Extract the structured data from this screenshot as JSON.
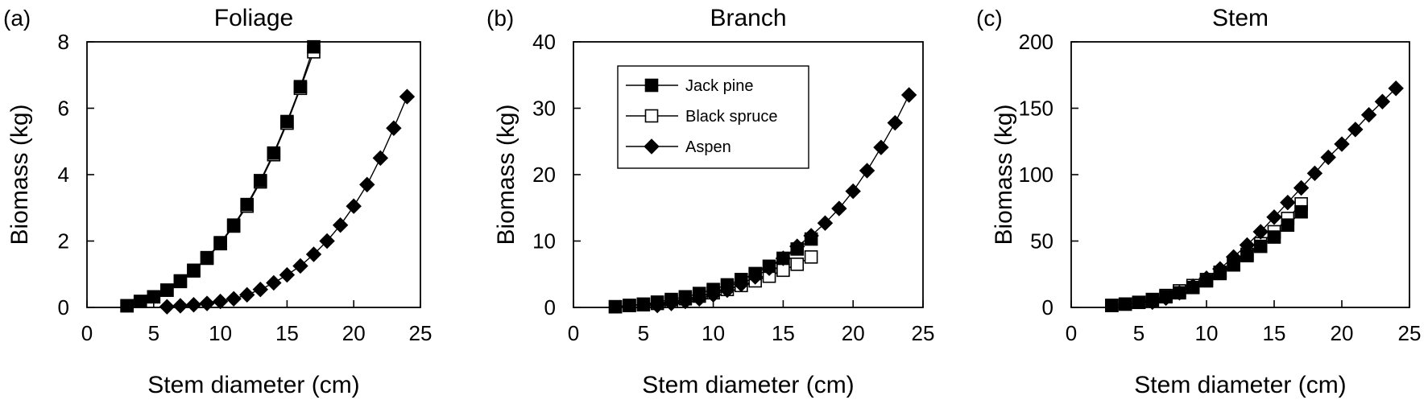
{
  "chart_data": [
    {
      "type": "line",
      "panel_label": "(a)",
      "title": "Foliage",
      "xlabel": "Stem diameter (cm)",
      "ylabel": "Biomass (kg)",
      "xlim": [
        0,
        25
      ],
      "ylim": [
        0,
        8
      ],
      "xticks": [
        0,
        5,
        10,
        15,
        20,
        25
      ],
      "yticks": [
        0,
        2,
        4,
        6,
        8
      ],
      "grid": false,
      "series": [
        {
          "name": "Jack pine",
          "marker": "filled-square",
          "x": [
            3,
            4,
            5,
            6,
            7,
            8,
            9,
            10,
            11,
            12,
            13,
            14,
            15,
            16,
            17
          ],
          "y": [
            0.05,
            0.18,
            0.32,
            0.52,
            0.8,
            1.12,
            1.5,
            1.95,
            2.48,
            3.1,
            3.82,
            4.65,
            5.6,
            6.65,
            7.85
          ]
        },
        {
          "name": "Black spruce",
          "marker": "open-square",
          "x": [
            3,
            4,
            5,
            6,
            7,
            8,
            9,
            10,
            11,
            12,
            13,
            14,
            15,
            16,
            17
          ],
          "y": [
            0.05,
            0.18,
            0.32,
            0.52,
            0.78,
            1.1,
            1.48,
            1.92,
            2.45,
            3.05,
            3.78,
            4.6,
            5.55,
            6.6,
            7.7
          ]
        },
        {
          "name": "Aspen",
          "marker": "filled-diamond",
          "x": [
            6,
            7,
            8,
            9,
            10,
            11,
            12,
            13,
            14,
            15,
            16,
            17,
            18,
            19,
            20,
            21,
            22,
            23,
            24
          ],
          "y": [
            0.02,
            0.05,
            0.08,
            0.12,
            0.18,
            0.26,
            0.38,
            0.54,
            0.74,
            0.98,
            1.25,
            1.6,
            2.0,
            2.48,
            3.05,
            3.7,
            4.5,
            5.4,
            6.35
          ]
        }
      ]
    },
    {
      "type": "line",
      "panel_label": "(b)",
      "title": "Branch",
      "xlabel": "Stem diameter (cm)",
      "ylabel": "Biomass (kg)",
      "xlim": [
        0,
        25
      ],
      "ylim": [
        0,
        40
      ],
      "xticks": [
        0,
        5,
        10,
        15,
        20,
        25
      ],
      "yticks": [
        0,
        10,
        20,
        30,
        40
      ],
      "grid": false,
      "legend": {
        "position": "upper-left",
        "entries": [
          "Jack pine",
          "Black spruce",
          "Aspen"
        ]
      },
      "series": [
        {
          "name": "Jack pine",
          "marker": "filled-square",
          "x": [
            3,
            4,
            5,
            6,
            7,
            8,
            9,
            10,
            11,
            12,
            13,
            14,
            15,
            16,
            17
          ],
          "y": [
            0.1,
            0.3,
            0.5,
            0.8,
            1.2,
            1.6,
            2.1,
            2.7,
            3.4,
            4.2,
            5.1,
            6.2,
            7.4,
            8.8,
            10.3
          ]
        },
        {
          "name": "Black spruce",
          "marker": "open-square",
          "x": [
            3,
            4,
            5,
            6,
            7,
            8,
            9,
            10,
            11,
            12,
            13,
            14,
            15,
            16,
            17
          ],
          "y": [
            0.1,
            0.3,
            0.4,
            0.6,
            0.9,
            1.3,
            1.7,
            2.2,
            2.7,
            3.3,
            4.0,
            4.7,
            5.6,
            6.5,
            7.6
          ]
        },
        {
          "name": "Aspen",
          "marker": "filled-diamond",
          "x": [
            6,
            7,
            8,
            9,
            10,
            11,
            12,
            13,
            14,
            15,
            16,
            17,
            18,
            19,
            20,
            21,
            22,
            23,
            24
          ],
          "y": [
            0.3,
            0.6,
            0.9,
            1.3,
            1.9,
            2.6,
            3.5,
            4.6,
            5.9,
            7.4,
            9.2,
            10.8,
            12.7,
            14.9,
            17.5,
            20.6,
            24.1,
            27.8,
            32.0
          ]
        }
      ]
    },
    {
      "type": "line",
      "panel_label": "(c)",
      "title": "Stem",
      "xlabel": "Stem diameter (cm)",
      "ylabel": "Biomass (kg)",
      "xlim": [
        0,
        25
      ],
      "ylim": [
        0,
        200
      ],
      "xticks": [
        0,
        5,
        10,
        15,
        20,
        25
      ],
      "yticks": [
        0,
        50,
        100,
        150,
        200
      ],
      "grid": false,
      "series": [
        {
          "name": "Jack pine",
          "marker": "filled-square",
          "x": [
            3,
            4,
            5,
            6,
            7,
            8,
            9,
            10,
            11,
            12,
            13,
            14,
            15,
            16,
            17
          ],
          "y": [
            1.5,
            2.5,
            3.8,
            5.5,
            8.0,
            11.0,
            15.0,
            20.0,
            25.5,
            32.0,
            39.0,
            46.0,
            53.0,
            62.0,
            72.0
          ]
        },
        {
          "name": "Black spruce",
          "marker": "open-square",
          "x": [
            3,
            4,
            5,
            6,
            7,
            8,
            9,
            10,
            11,
            12,
            13,
            14,
            15,
            16,
            17
          ],
          "y": [
            1.5,
            2.5,
            3.8,
            6.0,
            9.0,
            12.5,
            16.5,
            21.0,
            26.5,
            32.5,
            40.0,
            48.0,
            57.0,
            67.0,
            78.0
          ]
        },
        {
          "name": "Aspen",
          "marker": "filled-diamond",
          "x": [
            6,
            7,
            8,
            9,
            10,
            11,
            12,
            13,
            14,
            15,
            16,
            17,
            18,
            19,
            20,
            21,
            22,
            23,
            24
          ],
          "y": [
            4.0,
            7.0,
            11.0,
            16.0,
            22.0,
            29.0,
            38.0,
            47.0,
            57.0,
            68.0,
            79.0,
            90.0,
            101.0,
            113.0,
            123.0,
            134.0,
            145.0,
            155.0,
            165.0
          ]
        }
      ]
    }
  ]
}
